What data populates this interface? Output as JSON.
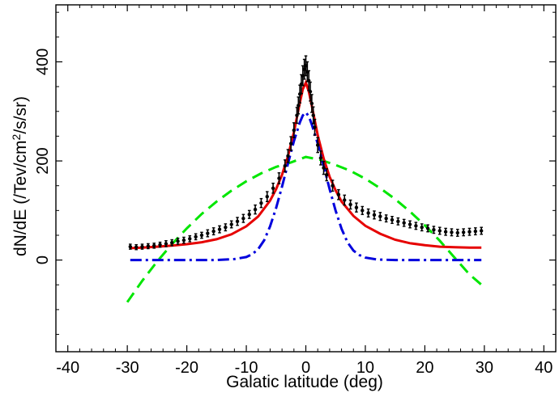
{
  "chart_data": {
    "type": "line",
    "title": "",
    "xlabel": "Galatic latitude (deg)",
    "ylabel_parts": [
      "dN/dE (/Tev/cm",
      "2",
      "/s/sr)"
    ],
    "xlim": [
      -42,
      42
    ],
    "ylim": [
      -185,
      515
    ],
    "xticks": [
      -40,
      -30,
      -20,
      -10,
      0,
      10,
      20,
      30,
      40
    ],
    "xtick_labels": [
      "-40",
      "-30",
      "-20",
      "-10",
      "0",
      "10",
      "20",
      "30",
      "40"
    ],
    "yticks": [
      0,
      200,
      400
    ],
    "ytick_labels": [
      "0",
      "200",
      "400"
    ],
    "grid": false,
    "legend": "none",
    "series": [
      {
        "style": "dashed",
        "color": "#00e600",
        "x": [
          -30,
          -27.5,
          -25,
          -22.5,
          -20,
          -17.5,
          -15,
          -12.5,
          -10,
          -7.5,
          -5,
          -2.5,
          0,
          2.5,
          5,
          7.5,
          10,
          12.5,
          15,
          17.5,
          20,
          22.5,
          25,
          27.5,
          30
        ],
        "y": [
          -85,
          -42,
          -3,
          32,
          64,
          93,
          118,
          140,
          159,
          175,
          188,
          197,
          208,
          202,
          192,
          180,
          164,
          145,
          123,
          98,
          70,
          39,
          5,
          -29,
          -55
        ]
      },
      {
        "style": "solid",
        "color": "#e60000",
        "x": [
          -29.5,
          -27.5,
          -25,
          -22.5,
          -20,
          -17.5,
          -15,
          -12.5,
          -10,
          -8,
          -6,
          -5,
          -4,
          -3,
          -2,
          -1.5,
          -1,
          -0.5,
          0,
          0.5,
          1,
          1.5,
          2,
          3,
          4,
          5,
          6,
          8,
          10,
          12.5,
          15,
          17.5,
          20,
          22.5,
          25,
          27.5,
          29.5
        ],
        "y": [
          24,
          25,
          27,
          29,
          32,
          36,
          42,
          52,
          68,
          88,
          120,
          143,
          172,
          210,
          258,
          288,
          318,
          345,
          358,
          340,
          312,
          282,
          252,
          205,
          168,
          141,
          118,
          89,
          69,
          53,
          41,
          34,
          30,
          27,
          26,
          25,
          25
        ]
      },
      {
        "style": "dashdot",
        "color": "#0000dd",
        "x": [
          -29.5,
          -25,
          -20,
          -15,
          -12,
          -10,
          -9,
          -8,
          -7,
          -6,
          -5,
          -4,
          -3,
          -2,
          -1,
          -0.5,
          0,
          0.5,
          1,
          2,
          3,
          4,
          5,
          6,
          7,
          8,
          9,
          10,
          12,
          15,
          20,
          25,
          29.5
        ],
        "y": [
          0,
          0,
          0,
          0,
          2,
          6,
          12,
          22,
          40,
          68,
          105,
          148,
          195,
          240,
          278,
          292,
          298,
          290,
          274,
          235,
          190,
          143,
          100,
          63,
          36,
          19,
          10,
          5,
          1,
          0,
          0,
          0,
          0
        ]
      }
    ],
    "data_points": {
      "color": "#000000",
      "marker": "errorbar",
      "x": [
        -29.5,
        -28.5,
        -27.5,
        -26.5,
        -25.5,
        -24.5,
        -23.5,
        -22.5,
        -21.5,
        -20.5,
        -19.5,
        -18.5,
        -17.5,
        -16.5,
        -15.5,
        -14.5,
        -13.5,
        -12.5,
        -11.5,
        -10.5,
        -9.5,
        -8.5,
        -7.5,
        -6.5,
        -5.5,
        -4.5,
        -3.5,
        -3,
        -2.5,
        -2,
        -1.5,
        -1.25,
        -1,
        -0.75,
        -0.5,
        -0.25,
        0,
        0.25,
        0.5,
        0.75,
        1,
        1.25,
        1.5,
        2,
        2.5,
        3,
        3.5,
        4.5,
        5.5,
        6.5,
        7.5,
        8.5,
        9.5,
        10.5,
        11.5,
        12.5,
        13.5,
        14.5,
        15.5,
        16.5,
        17.5,
        18.5,
        19.5,
        20.5,
        21.5,
        22.5,
        23.5,
        24.5,
        25.5,
        26.5,
        27.5,
        28.5,
        29.5
      ],
      "y": [
        27,
        26,
        27,
        28,
        29,
        31,
        33,
        35,
        38,
        40,
        43,
        47,
        50,
        54,
        58,
        62,
        66,
        72,
        78,
        84,
        92,
        102,
        115,
        128,
        145,
        165,
        190,
        210,
        235,
        262,
        292,
        312,
        335,
        355,
        372,
        385,
        392,
        380,
        362,
        340,
        316,
        292,
        268,
        232,
        206,
        186,
        172,
        150,
        132,
        121,
        112,
        106,
        100,
        95,
        91,
        88,
        84,
        81,
        78,
        75,
        72,
        69,
        66,
        64,
        61,
        59,
        57,
        56,
        55,
        56,
        57,
        58,
        59
      ],
      "err": [
        5,
        5,
        5,
        5,
        5,
        5,
        6,
        6,
        6,
        6,
        6,
        6,
        6,
        7,
        7,
        7,
        7,
        7,
        8,
        8,
        8,
        9,
        9,
        10,
        10,
        11,
        12,
        13,
        14,
        15,
        16,
        17,
        18,
        19,
        20,
        20,
        20,
        20,
        20,
        19,
        18,
        17,
        16,
        15,
        14,
        13,
        12,
        11,
        10,
        10,
        9,
        9,
        8,
        8,
        8,
        8,
        7,
        7,
        7,
        7,
        7,
        7,
        7,
        7,
        7,
        7,
        7,
        7,
        7,
        7,
        7,
        7,
        7
      ]
    }
  }
}
